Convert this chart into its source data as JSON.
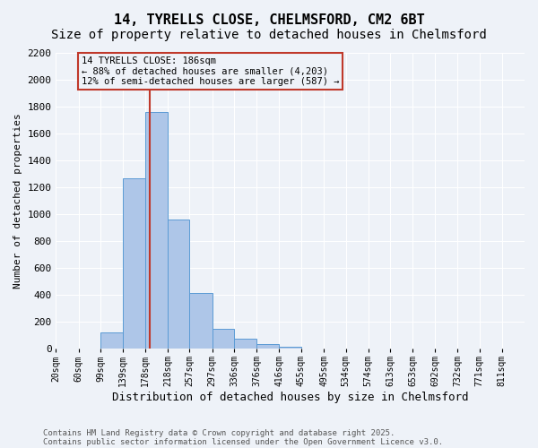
{
  "title1": "14, TYRELLS CLOSE, CHELMSFORD, CM2 6BT",
  "title2": "Size of property relative to detached houses in Chelmsford",
  "xlabel": "Distribution of detached houses by size in Chelmsford",
  "ylabel": "Number of detached properties",
  "bins": [
    "20sqm",
    "60sqm",
    "99sqm",
    "139sqm",
    "178sqm",
    "218sqm",
    "257sqm",
    "297sqm",
    "336sqm",
    "376sqm",
    "416sqm",
    "455sqm",
    "495sqm",
    "534sqm",
    "574sqm",
    "613sqm",
    "653sqm",
    "692sqm",
    "732sqm",
    "771sqm",
    "811sqm"
  ],
  "bin_edges": [
    20,
    60,
    99,
    139,
    178,
    218,
    257,
    297,
    336,
    376,
    416,
    455,
    495,
    534,
    574,
    613,
    653,
    692,
    732,
    771,
    811
  ],
  "values": [
    0,
    0,
    120,
    1270,
    1760,
    960,
    415,
    150,
    75,
    35,
    18,
    0,
    0,
    0,
    0,
    0,
    0,
    0,
    0,
    0,
    0
  ],
  "bar_color": "#aec6e8",
  "bar_edge_color": "#5b9bd5",
  "property_size": 186,
  "vline_color": "#c0392b",
  "annotation_line1": "14 TYRELLS CLOSE: 186sqm",
  "annotation_line2": "← 88% of detached houses are smaller (4,203)",
  "annotation_line3": "12% of semi-detached houses are larger (587) →",
  "ylim": [
    0,
    2200
  ],
  "yticks": [
    0,
    200,
    400,
    600,
    800,
    1000,
    1200,
    1400,
    1600,
    1800,
    2000,
    2200
  ],
  "footer1": "Contains HM Land Registry data © Crown copyright and database right 2025.",
  "footer2": "Contains public sector information licensed under the Open Government Licence v3.0.",
  "bg_color": "#eef2f8",
  "grid_color": "#ffffff",
  "title_fontsize": 11,
  "subtitle_fontsize": 10,
  "annotation_fontsize": 7.5,
  "tick_fontsize": 7,
  "ylabel_fontsize": 8,
  "xlabel_fontsize": 9
}
